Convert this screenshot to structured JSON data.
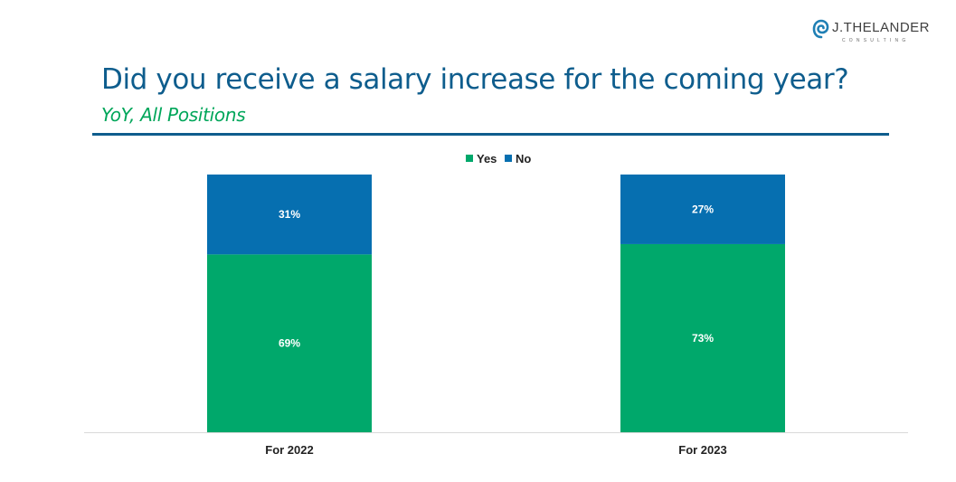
{
  "logo": {
    "name": "J.THELANDER",
    "tagline": "CONSULTING"
  },
  "header": {
    "title": "Did you receive a salary increase for the coming year?",
    "subtitle": "YoY, All Positions"
  },
  "colors": {
    "yes": "#00a86b",
    "no": "#066fb0",
    "title": "#0e5d8d",
    "subtitle": "#00a65a"
  },
  "chart_data": {
    "type": "bar",
    "stacked": true,
    "title": "Did you receive a salary increase for the coming year?",
    "subtitle": "YoY, All Positions",
    "categories": [
      "For 2022",
      "For 2023"
    ],
    "series": [
      {
        "name": "Yes",
        "values": [
          69,
          73
        ],
        "labels": [
          "69%",
          "73%"
        ]
      },
      {
        "name": "No",
        "values": [
          31,
          27
        ],
        "labels": [
          "31%",
          "27%"
        ]
      }
    ],
    "ylim": [
      0,
      100
    ],
    "units": "%",
    "legend": "top-center",
    "grid": false,
    "xlabel": "",
    "ylabel": ""
  }
}
